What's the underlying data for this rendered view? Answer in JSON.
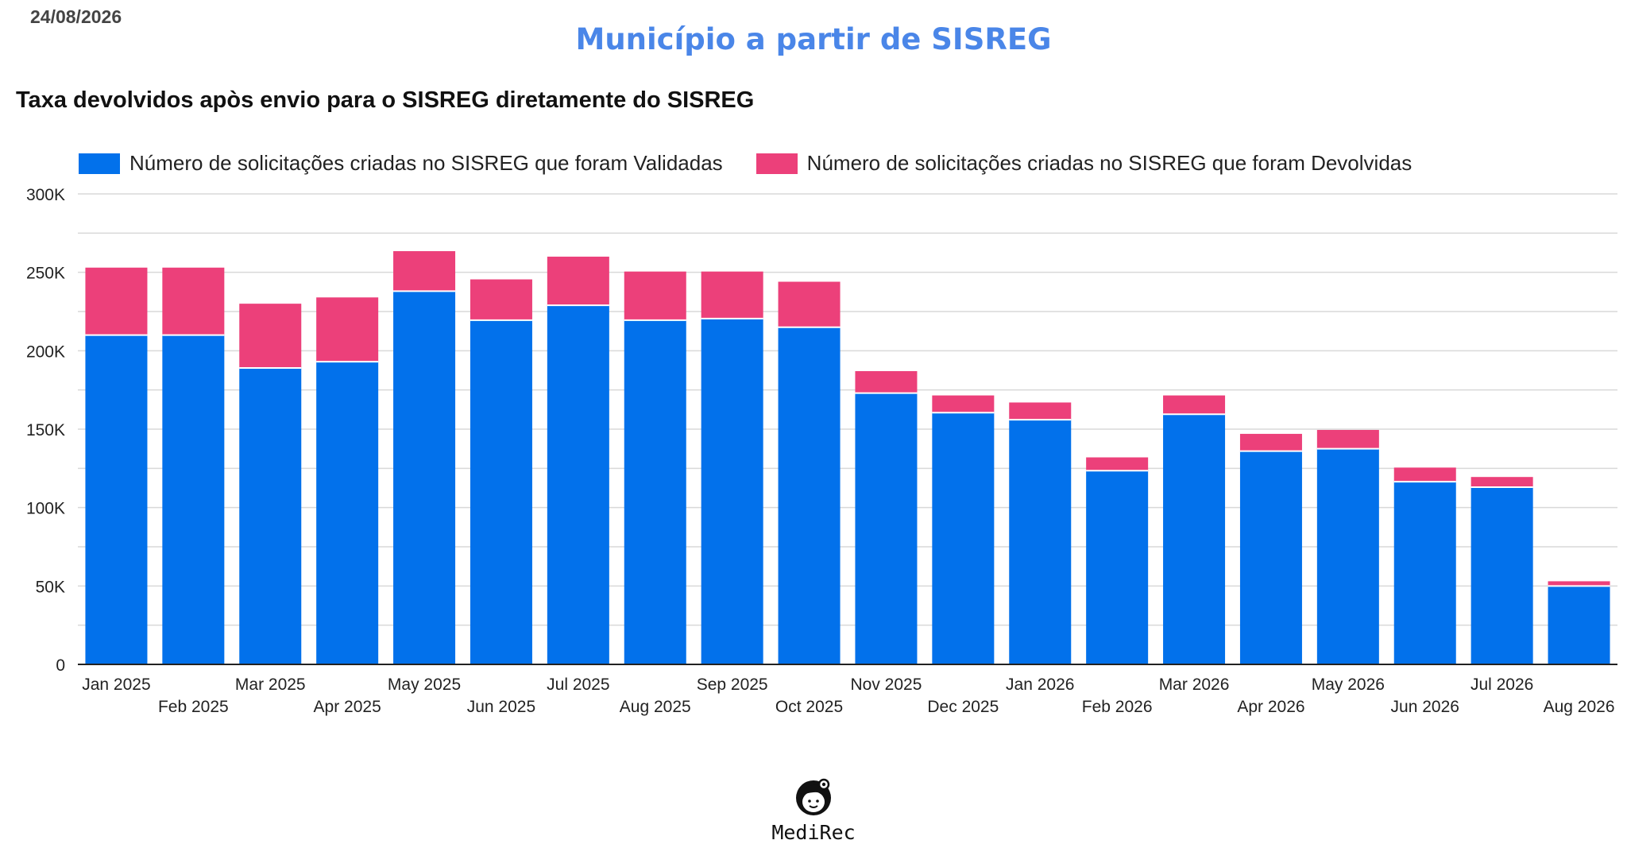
{
  "header": {
    "date": "24/08/2026",
    "page_title": "Município a partir de SISREG"
  },
  "footer": {
    "logo_name": "MediRec"
  },
  "colors": {
    "validadas": "#0271eb",
    "devolvidas": "#ec407a",
    "title": "#4a86e8",
    "grid": "#d9d9d9"
  },
  "chart_data": {
    "type": "bar",
    "stacked": true,
    "title": "Taxa devolvidos apòs envio para o SISREG diretamente do SISREG",
    "xlabel": "",
    "ylabel": "",
    "ylim": [
      0,
      300000
    ],
    "yticks": [
      0,
      50000,
      100000,
      150000,
      200000,
      250000,
      300000
    ],
    "ytick_labels": [
      "0",
      "50K",
      "100K",
      "150K",
      "200K",
      "250K",
      "300K"
    ],
    "grid": true,
    "legend_position": "top-left",
    "categories": [
      "Jan 2025",
      "Feb 2025",
      "Mar 2025",
      "Apr 2025",
      "May 2025",
      "Jun 2025",
      "Jul 2025",
      "Aug 2025",
      "Sep 2025",
      "Oct 2025",
      "Nov 2025",
      "Dec 2025",
      "Jan 2026",
      "Feb 2026",
      "Mar 2026",
      "Apr 2026",
      "May 2026",
      "Jun 2026",
      "Jul 2026",
      "Aug 2026"
    ],
    "series": [
      {
        "name": "Número de solicitações criadas no SISREG que foram Validadas",
        "color": "#0271eb",
        "values": [
          210000,
          210000,
          189000,
          193000,
          238000,
          219500,
          229000,
          219500,
          220500,
          215000,
          173000,
          160500,
          156000,
          123500,
          159500,
          136000,
          137500,
          116500,
          113000,
          50000
        ]
      },
      {
        "name": "Número de solicitações criadas no SISREG que foram Devolvidas",
        "color": "#ec407a",
        "values": [
          43000,
          43000,
          41000,
          41000,
          25500,
          26000,
          31000,
          31000,
          30000,
          29000,
          14000,
          11000,
          11000,
          8500,
          12000,
          11000,
          12000,
          9000,
          6500,
          3000
        ]
      }
    ]
  }
}
